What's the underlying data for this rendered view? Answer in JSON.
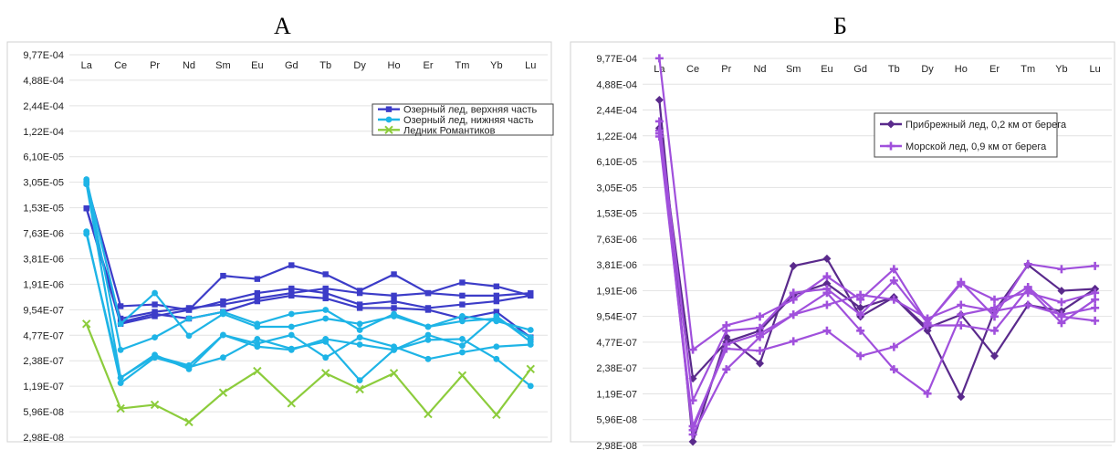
{
  "panels": {
    "left_label": "А",
    "right_label": "Б"
  },
  "chart_data": [
    {
      "type": "line",
      "panel": "А",
      "title": "",
      "xlabel": "",
      "ylabel": "",
      "y_scale": "log2",
      "categories": [
        "La",
        "Ce",
        "Pr",
        "Nd",
        "Sm",
        "Eu",
        "Gd",
        "Tb",
        "Dy",
        "Ho",
        "Er",
        "Tm",
        "Yb",
        "Lu"
      ],
      "y_tick_labels": [
        "9,77E-04",
        "4,88E-04",
        "2,44E-04",
        "1,22E-04",
        "6,10E-05",
        "3,05E-05",
        "1,53E-05",
        "7,63E-06",
        "3,81E-06",
        "1,91E-06",
        "9,54E-07",
        "4,77E-07",
        "2,38E-07",
        "1,19E-07",
        "5,96E-08",
        "2,98E-08"
      ],
      "ylim": [
        2.98e-08,
        0.000977
      ],
      "x_axis_position": "top",
      "grid": "horizontal",
      "legend_position": "top-right",
      "series": [
        {
          "name": "Озерный лед, верхняя часть",
          "color": "#3c3cc8",
          "marker": "square",
          "legend": true,
          "values": [
            3e-05,
            1.05e-06,
            1.1e-06,
            9.5e-07,
            1.2e-06,
            1.5e-06,
            1.7e-06,
            1.5e-06,
            1.1e-06,
            1.2e-06,
            1e-06,
            1.1e-06,
            1.2e-06,
            1.4e-06
          ]
        },
        {
          "name": "",
          "color": "#3c3cc8",
          "marker": "square",
          "legend": false,
          "values": [
            1.5e-05,
            7.5e-07,
            9e-07,
            1e-06,
            1.1e-06,
            1.3e-06,
            1.5e-06,
            1.7e-06,
            1.5e-06,
            1.4e-06,
            1.5e-06,
            1.4e-06,
            1.4e-06,
            1.5e-06
          ]
        },
        {
          "name": "",
          "color": "#3c3cc8",
          "marker": "square",
          "legend": false,
          "values": [
            1.5e-05,
            6.8e-07,
            8.5e-07,
            7.5e-07,
            9e-07,
            1.2e-06,
            1.4e-06,
            1.3e-06,
            1e-06,
            1e-06,
            9.5e-07,
            7.5e-07,
            9e-07,
            4.5e-07
          ]
        },
        {
          "name": "",
          "color": "#3c3cc8",
          "marker": "square",
          "legend": false,
          "values": [
            1.5e-05,
            6.5e-07,
            8e-07,
            9.5e-07,
            2.4e-06,
            2.2e-06,
            3.2e-06,
            2.5e-06,
            1.6e-06,
            2.5e-06,
            1.5e-06,
            2e-06,
            1.8e-06,
            1.4e-06
          ]
        },
        {
          "name": "Озерный лед, нижняя часть",
          "color": "#1eb4e6",
          "marker": "circle",
          "legend": true,
          "values": [
            3.3e-05,
            6.5e-07,
            1.5e-06,
            4.7e-07,
            8.5e-07,
            6e-07,
            6e-07,
            7.5e-07,
            6.5e-07,
            8e-07,
            6e-07,
            7e-07,
            7.5e-07,
            4.5e-07
          ]
        },
        {
          "name": "",
          "color": "#1eb4e6",
          "marker": "circle",
          "legend": false,
          "values": [
            3.1e-05,
            3.2e-07,
            4.5e-07,
            7.5e-07,
            9e-07,
            6.5e-07,
            8.5e-07,
            9.5e-07,
            5.5e-07,
            8.5e-07,
            6e-07,
            8e-07,
            7e-07,
            5.5e-07
          ]
        },
        {
          "name": "",
          "color": "#1eb4e6",
          "marker": "circle",
          "legend": false,
          "values": [
            2.9e-05,
            1.5e-07,
            2.7e-07,
            2.1e-07,
            4.8e-07,
            3.8e-07,
            4.8e-07,
            2.6e-07,
            4.5e-07,
            3.5e-07,
            2.5e-07,
            3e-07,
            3.5e-07,
            3.7e-07
          ]
        },
        {
          "name": "",
          "color": "#1eb4e6",
          "marker": "circle",
          "legend": false,
          "values": [
            8e-06,
            1.3e-07,
            2.6e-07,
            2e-07,
            2.6e-07,
            4.3e-07,
            3.3e-07,
            4e-07,
            1.4e-07,
            3.2e-07,
            4.2e-07,
            4.3e-07,
            2.5e-07,
            1.2e-07
          ]
        },
        {
          "name": "",
          "color": "#1eb4e6",
          "marker": "circle",
          "legend": false,
          "values": [
            7.5e-06,
            1.5e-07,
            2.8e-07,
            1.9e-07,
            4.8e-07,
            3.5e-07,
            3.2e-07,
            4.3e-07,
            3.7e-07,
            3.2e-07,
            4.8e-07,
            3.6e-07,
            8e-07,
            4e-07
          ]
        },
        {
          "name": "Ледник Романтиков",
          "color": "#8ccc3c",
          "marker": "x",
          "legend": true,
          "values": [
            6.5e-07,
            6.5e-08,
            7.2e-08,
            4.5e-08,
            1e-07,
            1.8e-07,
            7.5e-08,
            1.7e-07,
            1.1e-07,
            1.7e-07,
            5.6e-08,
            1.6e-07,
            5.5e-08,
            1.9e-07
          ]
        }
      ]
    },
    {
      "type": "line",
      "panel": "Б",
      "title": "",
      "xlabel": "",
      "ylabel": "",
      "y_scale": "log2",
      "categories": [
        "La",
        "Ce",
        "Pr",
        "Nd",
        "Sm",
        "Eu",
        "Gd",
        "Tb",
        "Dy",
        "Ho",
        "Er",
        "Tm",
        "Yb",
        "Lu"
      ],
      "y_tick_labels": [
        "9,77E-04",
        "4,88E-04",
        "2,44E-04",
        "1,22E-04",
        "6,10E-05",
        "3,05E-05",
        "1,53E-05",
        "7,63E-06",
        "3,81E-06",
        "1,91E-06",
        "9,54E-07",
        "4,77E-07",
        "2,38E-07",
        "1,19E-07",
        "5,96E-08",
        "2,98E-08"
      ],
      "ylim": [
        2.98e-08,
        0.000977
      ],
      "x_axis_position": "top",
      "grid": "horizontal",
      "legend_position": "top-right",
      "series": [
        {
          "name": "Прибрежный лед, 0,2 км от берега",
          "color": "#5a2a8c",
          "marker": "diamond",
          "legend": true,
          "values": [
            0.00032,
            3.3e-08,
            5.5e-07,
            2.7e-07,
            3.7e-06,
            4.5e-06,
            9.5e-07,
            1.6e-06,
            6.5e-07,
            1.1e-07,
            1.1e-06,
            3.8e-06,
            1.9e-06,
            2e-06
          ]
        },
        {
          "name": "",
          "color": "#5a2a8c",
          "marker": "diamond",
          "legend": false,
          "values": [
            0.00015,
            1.8e-07,
            4.8e-07,
            6.5e-07,
            1.7e-06,
            2.3e-06,
            1.2e-06,
            1.6e-06,
            7e-07,
            1e-06,
            3.3e-07,
            1.3e-06,
            1.1e-06,
            2e-06
          ]
        },
        {
          "name": "Морской лед, 0,9 км от берега",
          "color": "#a050dc",
          "marker": "plus",
          "legend": true,
          "values": [
            0.00098,
            3.9e-07,
            7.5e-07,
            9.5e-07,
            1.5e-06,
            2.8e-06,
            1.5e-06,
            3.4e-06,
            8e-07,
            2.4e-06,
            9.5e-07,
            3.9e-06,
            3.4e-06,
            3.7e-06
          ]
        },
        {
          "name": "",
          "color": "#a050dc",
          "marker": "plus",
          "legend": false,
          "values": [
            0.00018,
            1e-07,
            6.5e-07,
            7e-07,
            1.8e-06,
            2e-06,
            1e-06,
            2.5e-06,
            8e-07,
            2.3e-06,
            1.5e-06,
            1.8e-06,
            1.4e-06,
            1.8e-06
          ]
        },
        {
          "name": "",
          "color": "#a050dc",
          "marker": "plus",
          "legend": false,
          "values": [
            0.00013,
            5e-08,
            4e-07,
            3.8e-07,
            4.9e-07,
            6.5e-07,
            3.3e-07,
            4.2e-07,
            7.5e-07,
            7.5e-07,
            6.5e-07,
            2e-06,
            8e-07,
            1.5e-06
          ]
        },
        {
          "name": "",
          "color": "#a050dc",
          "marker": "plus",
          "legend": false,
          "values": [
            0.00012,
            4.5e-08,
            4.5e-07,
            6e-07,
            1e-06,
            1.8e-06,
            6.5e-07,
            2.3e-07,
            1.2e-07,
            1e-06,
            1.2e-06,
            2.1e-06,
            9.5e-07,
            8.5e-07
          ]
        },
        {
          "name": "",
          "color": "#a050dc",
          "marker": "plus",
          "legend": false,
          "values": [
            0.00014,
            4e-08,
            2.3e-07,
            5.5e-07,
            1e-06,
            1.3e-06,
            1.7e-06,
            1.5e-06,
            9e-07,
            1.3e-06,
            1.1e-06,
            1.3e-06,
            1e-06,
            1.2e-06
          ]
        }
      ]
    }
  ]
}
